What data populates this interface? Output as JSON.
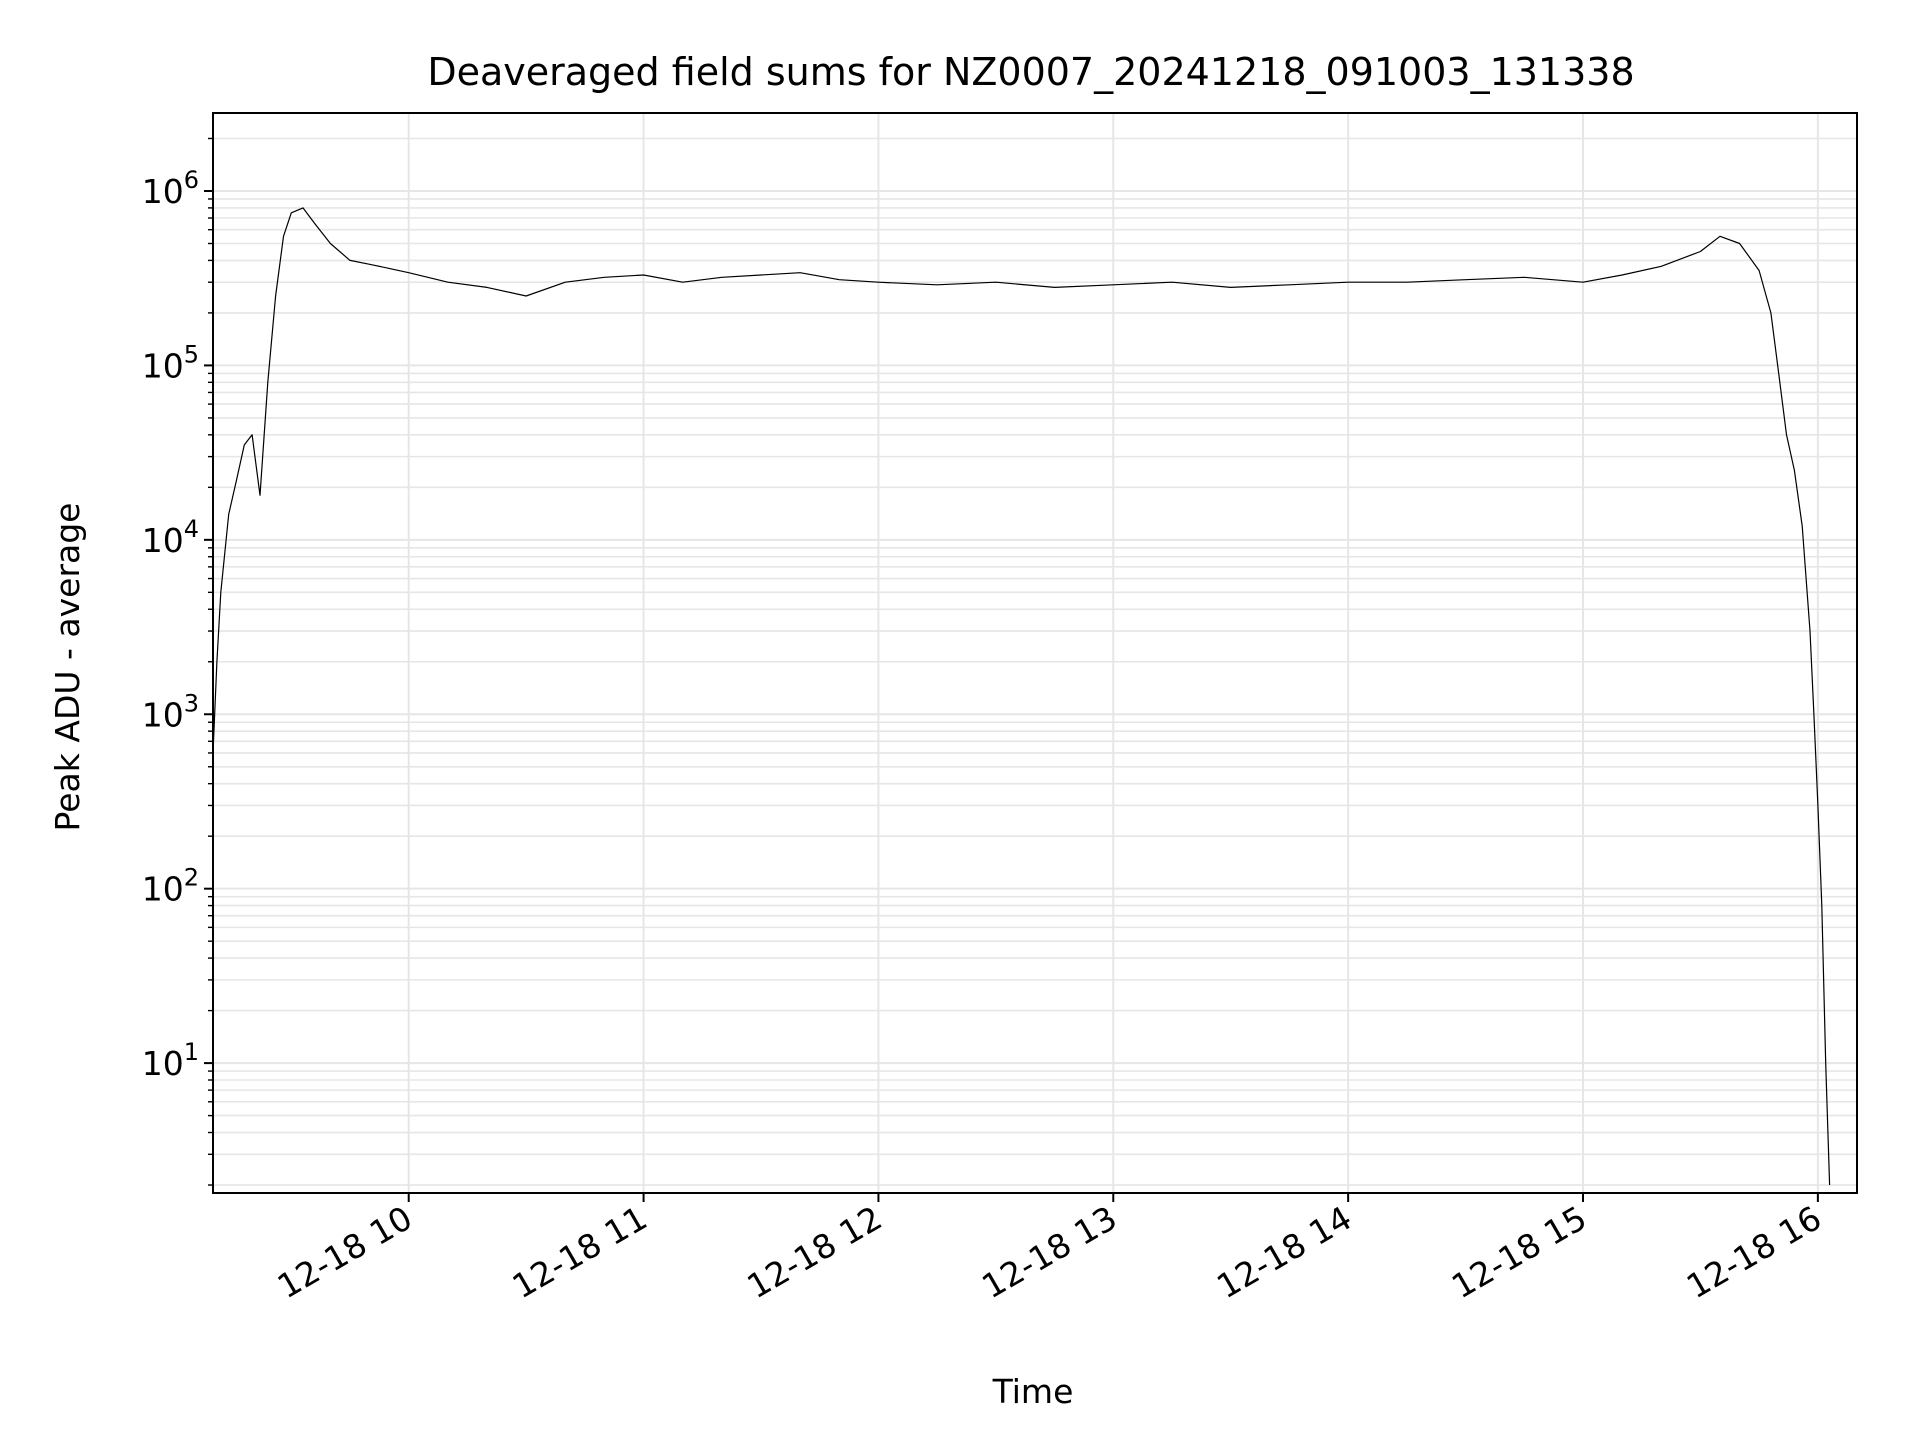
{
  "chart_data": {
    "type": "line",
    "title": "Deaveraged field sums for NZ0007_20241218_091003_131338",
    "xlabel": "Time",
    "ylabel": "Peak ADU - average",
    "xscale": "time",
    "yscale": "log",
    "xlim": [
      "12-18 09:10",
      "12-18 16:10"
    ],
    "ylim": [
      1.8,
      2800000.0
    ],
    "xticks": [
      {
        "value": "12-18 10:00",
        "label": "12-18 10"
      },
      {
        "value": "12-18 11:00",
        "label": "12-18 11"
      },
      {
        "value": "12-18 12:00",
        "label": "12-18 12"
      },
      {
        "value": "12-18 13:00",
        "label": "12-18 13"
      },
      {
        "value": "12-18 14:00",
        "label": "12-18 14"
      },
      {
        "value": "12-18 15:00",
        "label": "12-18 15"
      },
      {
        "value": "12-18 16:00",
        "label": "12-18 16"
      }
    ],
    "yticks": [
      {
        "value": 10,
        "base": "10",
        "exp": "1"
      },
      {
        "value": 100,
        "base": "10",
        "exp": "2"
      },
      {
        "value": 1000,
        "base": "10",
        "exp": "3"
      },
      {
        "value": 10000,
        "base": "10",
        "exp": "4"
      },
      {
        "value": 100000,
        "base": "10",
        "exp": "5"
      },
      {
        "value": 1000000,
        "base": "10",
        "exp": "6"
      }
    ],
    "grid": true,
    "line_color": "#000000",
    "grid_color": "#e6e6e6",
    "series": [
      {
        "x": [
          "12-18 09:10",
          "12-18 09:11",
          "12-18 09:12",
          "12-18 09:14",
          "12-18 09:16",
          "12-18 09:18",
          "12-18 09:20",
          "12-18 09:22",
          "12-18 09:24",
          "12-18 09:26",
          "12-18 09:28",
          "12-18 09:30",
          "12-18 09:33",
          "12-18 09:36",
          "12-18 09:40",
          "12-18 09:45",
          "12-18 09:50",
          "12-18 09:55",
          "12-18 10:00",
          "12-18 10:10",
          "12-18 10:20",
          "12-18 10:30",
          "12-18 10:40",
          "12-18 10:50",
          "12-18 11:00",
          "12-18 11:10",
          "12-18 11:20",
          "12-18 11:30",
          "12-18 11:40",
          "12-18 11:50",
          "12-18 12:00",
          "12-18 12:15",
          "12-18 12:30",
          "12-18 12:45",
          "12-18 13:00",
          "12-18 13:15",
          "12-18 13:30",
          "12-18 13:45",
          "12-18 14:00",
          "12-18 14:15",
          "12-18 14:30",
          "12-18 14:45",
          "12-18 15:00",
          "12-18 15:10",
          "12-18 15:20",
          "12-18 15:30",
          "12-18 15:35",
          "12-18 15:40",
          "12-18 15:45",
          "12-18 15:48",
          "12-18 15:50",
          "12-18 15:52",
          "12-18 15:54",
          "12-18 15:56",
          "12-18 15:58",
          "12-18 15:59",
          "12-18 16:00",
          "12-18 16:01",
          "12-18 16:02",
          "12-18 16:03"
        ],
        "values": [
          600,
          2000,
          5000,
          14000,
          22000,
          35000,
          40000,
          18000,
          80000,
          250000,
          550000,
          750000,
          800000,
          650000,
          500000,
          400000,
          380000,
          360000,
          340000,
          300000,
          280000,
          250000,
          300000,
          320000,
          330000,
          300000,
          320000,
          330000,
          340000,
          310000,
          300000,
          290000,
          300000,
          280000,
          290000,
          300000,
          280000,
          290000,
          300000,
          300000,
          310000,
          320000,
          300000,
          330000,
          370000,
          450000,
          550000,
          500000,
          350000,
          200000,
          90000,
          40000,
          25000,
          12000,
          3000,
          1000,
          300,
          80,
          10,
          2
        ]
      }
    ]
  }
}
